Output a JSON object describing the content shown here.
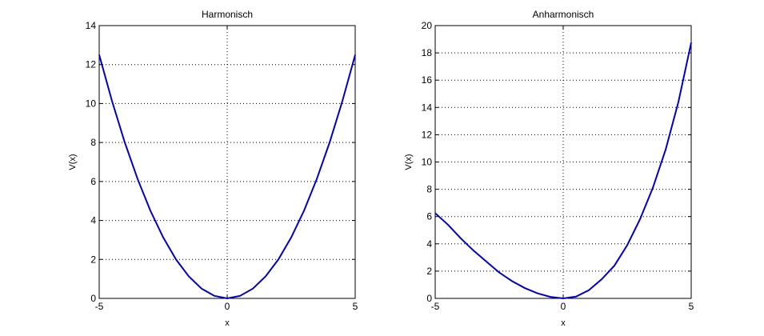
{
  "chart_data": [
    {
      "type": "line",
      "title": "Harmonisch",
      "xlabel": "x",
      "ylabel": "V(x)",
      "xlim": [
        -5,
        5
      ],
      "ylim": [
        0,
        14
      ],
      "xticks": [
        -5,
        0,
        5
      ],
      "yticks": [
        0,
        2,
        4,
        6,
        8,
        10,
        12,
        14
      ],
      "grid": true,
      "color": "#0000cc",
      "series": [
        {
          "x": [
            -5,
            -4.5,
            -4,
            -3.5,
            -3,
            -2.5,
            -2,
            -1.5,
            -1,
            -0.5,
            0,
            0.5,
            1,
            1.5,
            2,
            2.5,
            3,
            3.5,
            4,
            4.5,
            5
          ],
          "values": [
            12.5,
            10.13,
            8,
            6.13,
            4.5,
            3.13,
            2,
            1.13,
            0.5,
            0.13,
            0,
            0.13,
            0.5,
            1.13,
            2,
            3.13,
            4.5,
            6.13,
            8,
            10.13,
            12.5
          ]
        }
      ]
    },
    {
      "type": "line",
      "title": "Anharmonisch",
      "xlabel": "x",
      "ylabel": "V(x)",
      "xlim": [
        -5,
        5
      ],
      "ylim": [
        0,
        20
      ],
      "xticks": [
        -5,
        0,
        5
      ],
      "yticks": [
        0,
        2,
        4,
        6,
        8,
        10,
        12,
        14,
        16,
        18,
        20
      ],
      "grid": true,
      "color": "#0000cc",
      "series": [
        {
          "x": [
            -5,
            -4.5,
            -4,
            -3.5,
            -3,
            -2.5,
            -2,
            -1.5,
            -1,
            -0.5,
            0,
            0.5,
            1,
            1.5,
            2,
            2.5,
            3,
            3.5,
            4,
            4.5,
            5
          ],
          "values": [
            6.25,
            5.4,
            4.4,
            3.5,
            2.7,
            1.9,
            1.27,
            0.76,
            0.37,
            0.11,
            0,
            0.13,
            0.6,
            1.4,
            2.4,
            3.9,
            5.8,
            8.1,
            10.9,
            14.4,
            18.75
          ]
        }
      ]
    }
  ]
}
